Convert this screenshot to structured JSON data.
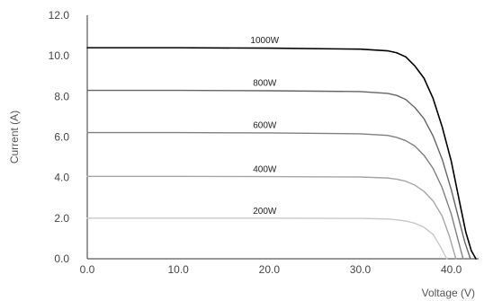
{
  "chart_data": {
    "type": "line",
    "title": "",
    "xlabel": "Voltage (V)",
    "ylabel": "Current (A)",
    "xlim": [
      0,
      43
    ],
    "ylim": [
      0,
      12
    ],
    "x_ticks": [
      "0.0",
      "10.0",
      "20.0",
      "30.0",
      "40.0"
    ],
    "y_ticks": [
      "0.0",
      "2.0",
      "4.0",
      "6.0",
      "8.0",
      "10.0",
      "12.0"
    ],
    "grid": false,
    "series": [
      {
        "name": "1000W",
        "color": "#000000",
        "x": [
          0,
          10,
          20,
          30,
          33,
          34,
          35,
          36,
          37,
          38,
          39,
          40,
          41,
          41.6,
          42.2,
          42.7
        ],
        "y": [
          10.4,
          10.4,
          10.38,
          10.33,
          10.25,
          10.15,
          9.95,
          9.5,
          8.9,
          7.9,
          6.5,
          4.8,
          2.6,
          1.3,
          0.4,
          0
        ]
      },
      {
        "name": "800W",
        "color": "#666666",
        "x": [
          0,
          10,
          20,
          30,
          33,
          34,
          35,
          36,
          37,
          38,
          39,
          40,
          40.8,
          41.5,
          42.1
        ],
        "y": [
          8.3,
          8.3,
          8.28,
          8.24,
          8.15,
          8.05,
          7.85,
          7.45,
          6.9,
          6.05,
          4.9,
          3.4,
          2.0,
          0.8,
          0
        ]
      },
      {
        "name": "600W",
        "color": "#808080",
        "x": [
          0,
          10,
          20,
          30,
          33,
          34,
          35,
          36,
          37,
          38,
          39,
          40,
          40.7,
          41.3
        ],
        "y": [
          6.22,
          6.22,
          6.2,
          6.16,
          6.08,
          5.98,
          5.82,
          5.55,
          5.1,
          4.45,
          3.5,
          2.2,
          1.0,
          0
        ]
      },
      {
        "name": "400W",
        "color": "#a6a6a6",
        "x": [
          0,
          10,
          20,
          30,
          33,
          34,
          35,
          36,
          37,
          38,
          39,
          39.8,
          40.5
        ],
        "y": [
          4.06,
          4.06,
          4.05,
          4.03,
          3.98,
          3.92,
          3.82,
          3.63,
          3.32,
          2.85,
          2.1,
          1.1,
          0
        ]
      },
      {
        "name": "200W",
        "color": "#c8c8c8",
        "x": [
          0,
          10,
          20,
          30,
          33,
          34,
          35,
          36,
          37,
          38,
          38.8,
          39.5
        ],
        "y": [
          2.0,
          2.0,
          2.0,
          1.99,
          1.96,
          1.92,
          1.86,
          1.75,
          1.55,
          1.2,
          0.6,
          0
        ]
      }
    ],
    "series_label_positions": [
      {
        "name": "1000W",
        "x": 19.5
      },
      {
        "name": "800W",
        "x": 19.5
      },
      {
        "name": "600W",
        "x": 19.5
      },
      {
        "name": "400W",
        "x": 19.5
      },
      {
        "name": "200W",
        "x": 19.5
      }
    ],
    "axis_color": "#333333"
  }
}
